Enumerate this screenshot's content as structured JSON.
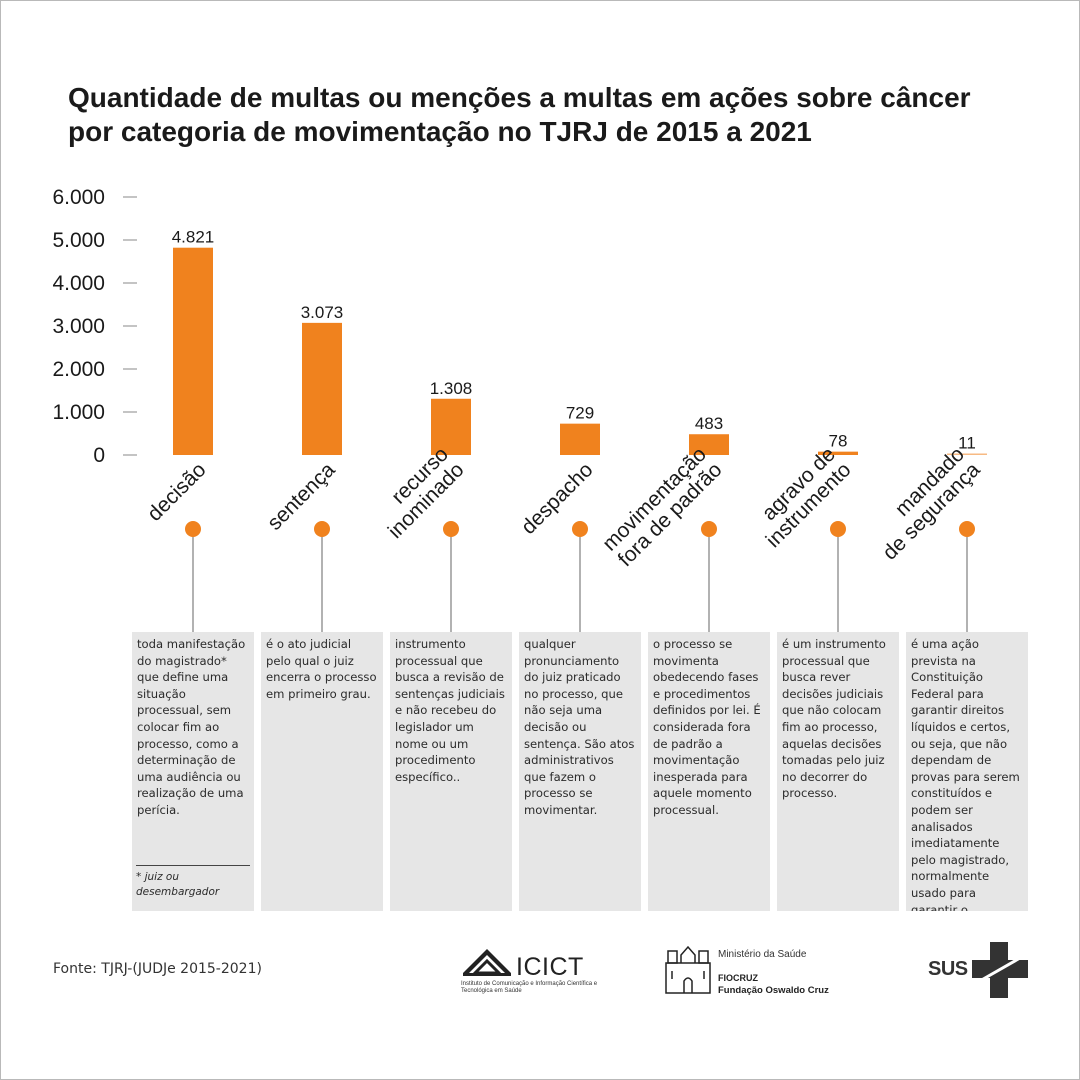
{
  "title_lines": [
    "Quantidade de multas ou menções a multas em ações sobre câncer",
    "por categoria de movimentação no TJRJ de 2015 a 2021"
  ],
  "colors": {
    "bar": "#f0821e",
    "line": "#666666",
    "box": "#e6e6e6",
    "text": "#1a1a1a"
  },
  "chart_data": {
    "type": "bar",
    "title": "Quantidade de multas ou menções a multas em ações sobre câncer por categoria de movimentação no TJRJ de 2015 a 2021",
    "categories": [
      "decisão",
      "sentença",
      "recurso inominado",
      "despacho",
      "movimentação fora de padrão",
      "agravo de instrumento",
      "mandado de segurança"
    ],
    "category_lines": [
      [
        "decisão"
      ],
      [
        "sentença"
      ],
      [
        "recurso",
        "inominado"
      ],
      [
        "despacho"
      ],
      [
        "movimentação",
        "fora de padrão"
      ],
      [
        "agravo de",
        "instrumento"
      ],
      [
        "mandado",
        "de segurança"
      ]
    ],
    "values": [
      4821,
      3073,
      1308,
      729,
      483,
      78,
      11
    ],
    "value_labels": [
      "4.821",
      "3.073",
      "1.308",
      "729",
      "483",
      "78",
      "11"
    ],
    "ylim": [
      0,
      6000
    ],
    "yticks": [
      0,
      1000,
      2000,
      3000,
      4000,
      5000,
      6000
    ],
    "ytick_labels": [
      "0",
      "1.000",
      "2.000",
      "3.000",
      "4.000",
      "5.000",
      "6.000"
    ],
    "xlabel": "",
    "ylabel": "",
    "grid": false,
    "legend": "none"
  },
  "descriptions": [
    "toda manifestação do magistrado* que define uma situação processual, sem colocar fim ao processo, como a determinação de uma audiência ou realização de uma perícia.",
    "é o ato judicial pelo qual o juiz encerra o processo em primeiro grau.",
    "instrumento processual que busca a revisão de sentenças judiciais e não recebeu do legislador um nome ou um procedimento específico..",
    "qualquer pronunciamento do juiz praticado no processo, que não seja uma decisão ou sentença. São atos administrativos que fazem o processo se movimentar.",
    "o processo se movimenta obedecendo fases e procedimentos definidos por lei. É considerada fora de padrão a movimentação inesperada para aquele momento processual.",
    "é um instrumento processual que busca rever decisões judiciais que não colocam fim ao processo, aquelas decisões tomadas pelo juiz no decorrer do processo.",
    "é uma ação prevista na Constituição Federal para garantir direitos líquidos e certos, ou seja, que não dependam de provas para serem constituídos e podem ser analisados imediatamente pelo magistrado, normalmente usado para garantir o exercício de direitos."
  ],
  "footnote": "* juiz ou desembargador",
  "source": "Fonte: TJRJ-(JUDJe 2015-2021)",
  "logos": {
    "icict_name": "ICICT",
    "icict_subtitle": "Instituto de Comunicação e Informação Científica e Tecnológica em Saúde",
    "ministerio": "Ministério da Saúde",
    "fiocruz_short": "FIOCRUZ",
    "fiocruz_full": "Fundação Oswaldo Cruz",
    "sus": "SUS"
  }
}
